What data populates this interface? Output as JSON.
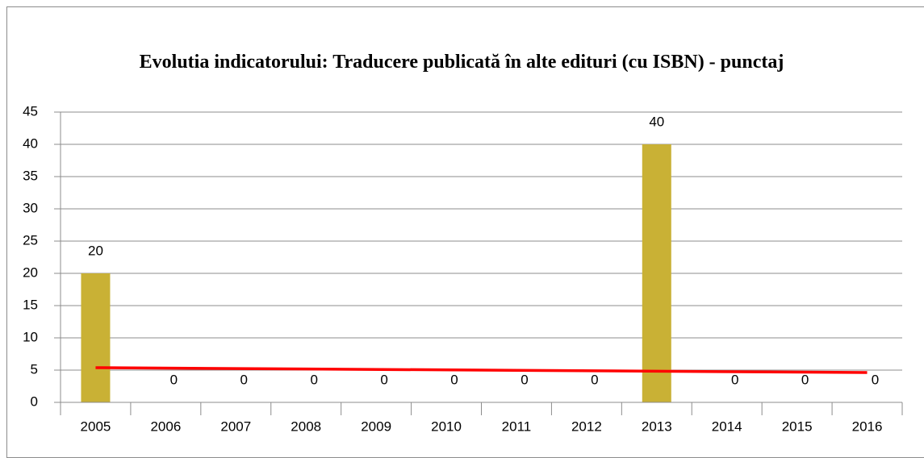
{
  "chart_data": {
    "type": "bar",
    "title": "Evolutia indicatorului: Traducere publicată în alte edituri (cu ISBN) - punctaj",
    "categories": [
      "2005",
      "2006",
      "2007",
      "2008",
      "2009",
      "2010",
      "2011",
      "2012",
      "2013",
      "2014",
      "2015",
      "2016"
    ],
    "values": [
      20,
      0,
      0,
      0,
      0,
      0,
      0,
      0,
      40,
      0,
      0,
      0
    ],
    "color": "#c9b135",
    "trendline": {
      "values": [
        5.38,
        4.62
      ],
      "color": "#ff0000"
    },
    "ylim": [
      0,
      45
    ],
    "yticks": [
      0,
      5,
      10,
      15,
      20,
      25,
      30,
      35,
      40,
      45
    ],
    "grid": true
  }
}
